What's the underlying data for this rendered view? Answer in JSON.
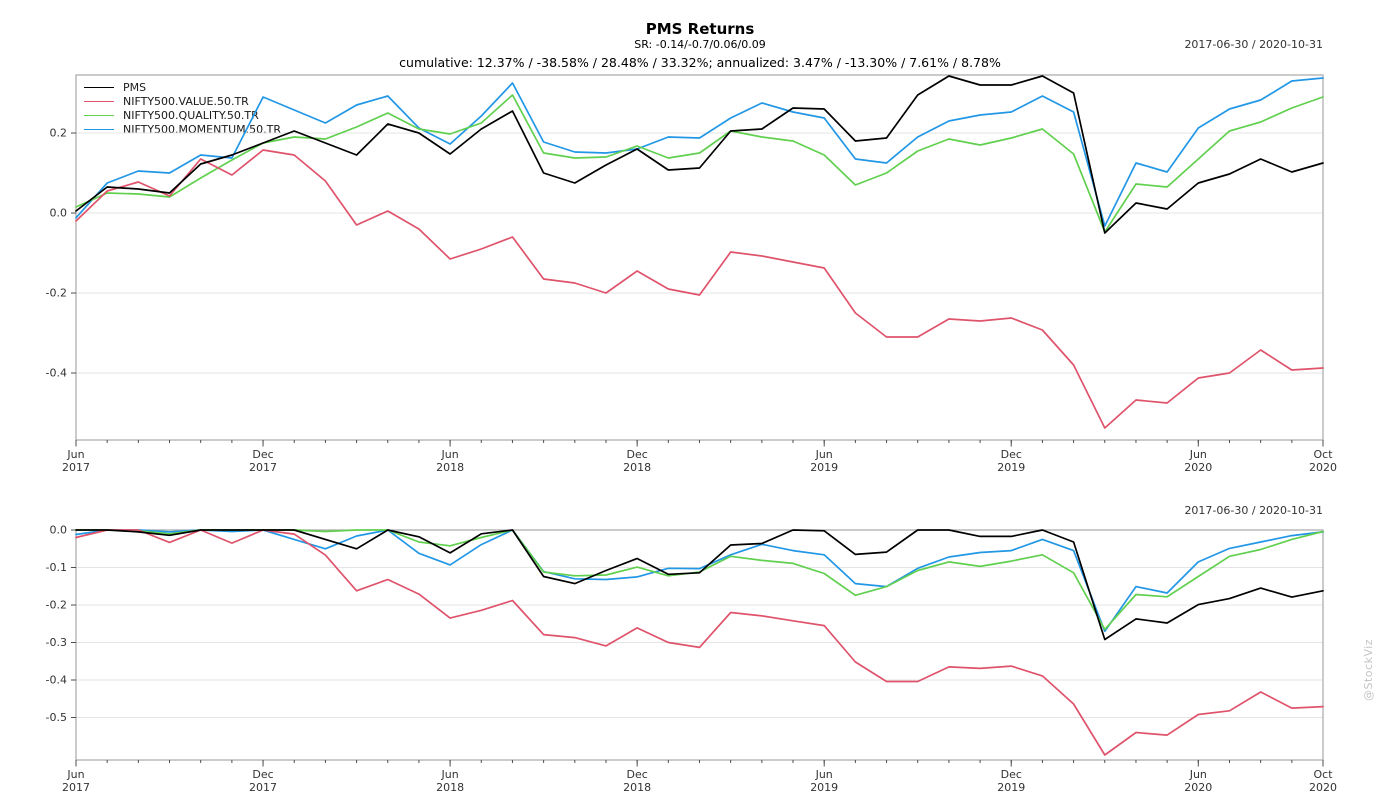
{
  "header": {
    "title": "PMS Returns",
    "sr_line": "SR: -0.14/-0.7/0.06/0.09",
    "stats_line": "cumulative: 12.37% / -38.58% / 28.48% / 33.32%; annualized: 3.47% / -13.30% / 7.61% / 8.78%"
  },
  "date_range": "2017-06-30 / 2020-10-31",
  "watermark": "@StockViz",
  "colors": {
    "pms": "#000000",
    "value": "#DF536B",
    "quality": "#61D04F",
    "momentum": "#2297E6",
    "grid": "#e4e4e4",
    "frame": "#a8a8a8",
    "axis": "#4d4d4d",
    "tick_text": "#333333",
    "background": "#ffffff"
  },
  "legend": [
    {
      "label": "PMS",
      "color_key": "pms"
    },
    {
      "label": "NIFTY500.VALUE.50.TR",
      "color_key": "value"
    },
    {
      "label": "NIFTY500.QUALITY.50.TR",
      "color_key": "quality"
    },
    {
      "label": "NIFTY500.MOMENTUM.50.TR",
      "color_key": "momentum"
    }
  ],
  "months": [
    "2017-06",
    "2017-07",
    "2017-08",
    "2017-09",
    "2017-10",
    "2017-11",
    "2017-12",
    "2018-01",
    "2018-02",
    "2018-03",
    "2018-04",
    "2018-05",
    "2018-06",
    "2018-07",
    "2018-08",
    "2018-09",
    "2018-10",
    "2018-11",
    "2018-12",
    "2019-01",
    "2019-02",
    "2019-03",
    "2019-04",
    "2019-05",
    "2019-06",
    "2019-07",
    "2019-08",
    "2019-09",
    "2019-10",
    "2019-11",
    "2019-12",
    "2020-01",
    "2020-02",
    "2020-03",
    "2020-04",
    "2020-05",
    "2020-06",
    "2020-07",
    "2020-08",
    "2020-09",
    "2020-10"
  ],
  "x_major_ticks": [
    {
      "index": 0,
      "line1": "Jun",
      "line2": "2017"
    },
    {
      "index": 6,
      "line1": "Dec",
      "line2": "2017"
    },
    {
      "index": 12,
      "line1": "Jun",
      "line2": "2018"
    },
    {
      "index": 18,
      "line1": "Dec",
      "line2": "2018"
    },
    {
      "index": 24,
      "line1": "Jun",
      "line2": "2019"
    },
    {
      "index": 30,
      "line1": "Dec",
      "line2": "2019"
    },
    {
      "index": 36,
      "line1": "Jun",
      "line2": "2020"
    },
    {
      "index": 40,
      "line1": "Oct",
      "line2": "2020"
    }
  ],
  "chart_data": [
    {
      "type": "line",
      "name": "cumulative-returns",
      "date_label": "2017-06-30 / 2020-10-31",
      "ylim": [
        -0.5675,
        0.345
      ],
      "grid": true,
      "legend_position": "top-left",
      "yticks": [
        {
          "v": 0.2,
          "label": "0.2"
        },
        {
          "v": 0.0,
          "label": "0.0"
        },
        {
          "v": -0.2,
          "label": "-0.2"
        },
        {
          "v": -0.4,
          "label": "-0.4"
        }
      ],
      "series": [
        {
          "name": "PMS",
          "color_key": "pms",
          "values": [
            0.005,
            0.065,
            0.06,
            0.05,
            0.1225,
            0.145,
            0.175,
            0.205,
            0.175,
            0.145,
            0.2225,
            0.2,
            0.1475,
            0.21,
            0.255,
            0.1,
            0.075,
            0.12,
            0.16,
            0.1075,
            0.1125,
            0.205,
            0.21,
            0.2625,
            0.26,
            0.18,
            0.1875,
            0.295,
            0.3425,
            0.32,
            0.32,
            0.3425,
            0.3,
            -0.05,
            0.025,
            0.01,
            0.075,
            0.0975,
            0.135,
            0.1025,
            0.125
          ]
        },
        {
          "name": "NIFTY500.VALUE.50.TR",
          "color_key": "value",
          "values": [
            -0.02,
            0.055,
            0.0775,
            0.0425,
            0.135,
            0.095,
            0.1575,
            0.145,
            0.08,
            -0.03,
            0.005,
            -0.04,
            -0.115,
            -0.09,
            -0.06,
            -0.165,
            -0.175,
            -0.2,
            -0.145,
            -0.19,
            -0.205,
            -0.0975,
            -0.1075,
            -0.1225,
            -0.1375,
            -0.25,
            -0.31,
            -0.31,
            -0.265,
            -0.27,
            -0.2625,
            -0.2925,
            -0.38,
            -0.5375,
            -0.4675,
            -0.475,
            -0.4125,
            -0.4,
            -0.3425,
            -0.3925,
            -0.3875
          ]
        },
        {
          "name": "NIFTY500.QUALITY.50.TR",
          "color_key": "quality",
          "values": [
            0.015,
            0.05,
            0.0475,
            0.04,
            0.0875,
            0.1325,
            0.175,
            0.19,
            0.185,
            0.215,
            0.25,
            0.21,
            0.1975,
            0.225,
            0.295,
            0.15,
            0.1375,
            0.14,
            0.1675,
            0.1375,
            0.15,
            0.205,
            0.19,
            0.18,
            0.145,
            0.07,
            0.1,
            0.155,
            0.185,
            0.17,
            0.1875,
            0.21,
            0.1475,
            -0.0475,
            0.0725,
            0.065,
            0.135,
            0.205,
            0.2275,
            0.2625,
            0.29
          ]
        },
        {
          "name": "NIFTY500.MOMENTUM.50.TR",
          "color_key": "momentum",
          "values": [
            -0.012,
            0.075,
            0.105,
            0.1,
            0.145,
            0.1375,
            0.29,
            0.2575,
            0.225,
            0.27,
            0.2925,
            0.2125,
            0.1725,
            0.2425,
            0.325,
            0.1775,
            0.1525,
            0.15,
            0.16,
            0.19,
            0.1875,
            0.2375,
            0.275,
            0.2525,
            0.2375,
            0.135,
            0.125,
            0.19,
            0.23,
            0.245,
            0.2525,
            0.2925,
            0.2525,
            -0.0325,
            0.125,
            0.1025,
            0.2125,
            0.26,
            0.2825,
            0.33,
            0.3375
          ]
        }
      ]
    },
    {
      "type": "line",
      "name": "drawdowns",
      "date_label": "2017-06-30 / 2020-10-31",
      "ylim": [
        -0.6133,
        0.0
      ],
      "grid": true,
      "legend_position": "none",
      "yticks": [
        {
          "v": 0.0,
          "label": "0.0"
        },
        {
          "v": -0.1,
          "label": "-0.1"
        },
        {
          "v": -0.2,
          "label": "-0.2"
        },
        {
          "v": -0.3,
          "label": "-0.3"
        },
        {
          "v": -0.4,
          "label": "-0.4"
        },
        {
          "v": -0.5,
          "label": "-0.5"
        }
      ],
      "series": [
        {
          "name": "PMS",
          "color_key": "pms",
          "values": [
            0,
            0,
            -0.005,
            -0.014,
            0,
            0,
            0,
            0,
            -0.025,
            -0.05,
            0,
            -0.018,
            -0.061,
            -0.01,
            0,
            -0.124,
            -0.143,
            -0.108,
            -0.076,
            -0.118,
            -0.114,
            -0.04,
            -0.036,
            0,
            -0.002,
            -0.065,
            -0.059,
            0,
            0,
            -0.017,
            -0.017,
            0,
            -0.032,
            -0.292,
            -0.237,
            -0.248,
            -0.199,
            -0.183,
            -0.155,
            -0.179,
            -0.162
          ]
        },
        {
          "name": "NIFTY500.VALUE.50.TR",
          "color_key": "value",
          "values": [
            -0.02,
            0,
            0,
            -0.033,
            0,
            -0.035,
            0,
            -0.011,
            -0.067,
            -0.162,
            -0.132,
            -0.171,
            -0.235,
            -0.214,
            -0.188,
            -0.279,
            -0.287,
            -0.309,
            -0.261,
            -0.3,
            -0.313,
            -0.22,
            -0.229,
            -0.242,
            -0.255,
            -0.352,
            -0.404,
            -0.404,
            -0.365,
            -0.369,
            -0.363,
            -0.389,
            -0.464,
            -0.6,
            -0.54,
            -0.547,
            -0.492,
            -0.482,
            -0.432,
            -0.475,
            -0.471
          ]
        },
        {
          "name": "NIFTY500.QUALITY.50.TR",
          "color_key": "quality",
          "values": [
            0,
            0,
            -0.002,
            -0.01,
            0,
            0,
            0,
            0,
            -0.004,
            0,
            0,
            -0.032,
            -0.042,
            -0.02,
            0,
            -0.112,
            -0.122,
            -0.12,
            -0.099,
            -0.122,
            -0.112,
            -0.07,
            -0.081,
            -0.089,
            -0.116,
            -0.174,
            -0.151,
            -0.108,
            -0.085,
            -0.097,
            -0.083,
            -0.066,
            -0.114,
            -0.265,
            -0.172,
            -0.178,
            -0.124,
            -0.07,
            -0.052,
            -0.025,
            -0.004
          ]
        },
        {
          "name": "NIFTY500.MOMENTUM.50.TR",
          "color_key": "momentum",
          "values": [
            -0.012,
            0,
            0,
            -0.005,
            0,
            -0.004,
            0,
            -0.025,
            -0.05,
            -0.016,
            0,
            -0.062,
            -0.093,
            -0.039,
            0,
            -0.111,
            -0.13,
            -0.132,
            -0.125,
            -0.102,
            -0.103,
            -0.066,
            -0.038,
            -0.055,
            -0.066,
            -0.143,
            -0.151,
            -0.102,
            -0.072,
            -0.06,
            -0.055,
            -0.025,
            -0.055,
            -0.27,
            -0.151,
            -0.168,
            -0.085,
            -0.049,
            -0.032,
            -0.015,
            -0.005
          ]
        }
      ]
    }
  ]
}
